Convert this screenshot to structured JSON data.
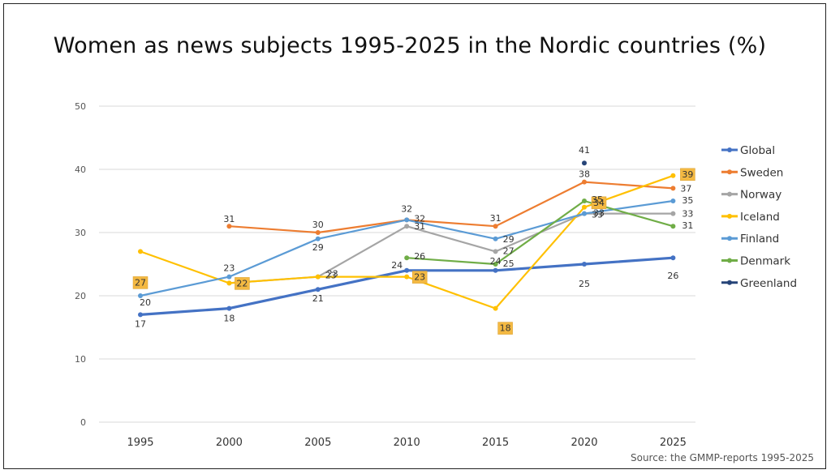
{
  "chart_data": {
    "type": "line",
    "title": "Women as news subjects 1995-2025 in the Nordic countries (%)",
    "source": "Source: the GMMP-reports 1995-2025",
    "x": [
      "1995",
      "2000",
      "2005",
      "2010",
      "2015",
      "2020",
      "2025"
    ],
    "ylim": [
      0,
      50
    ],
    "yticks": [
      0,
      10,
      20,
      30,
      40,
      50
    ],
    "grid": true,
    "legend_position": "right",
    "series": [
      {
        "name": "Global",
        "color": "#4472C4",
        "values": [
          17,
          18,
          21,
          24,
          24,
          25,
          26
        ]
      },
      {
        "name": "Sweden",
        "color": "#ED7D31",
        "values": [
          null,
          31,
          30,
          32,
          31,
          38,
          37
        ]
      },
      {
        "name": "Norway",
        "color": "#A5A5A5",
        "values": [
          null,
          22,
          23,
          31,
          27,
          33,
          33
        ]
      },
      {
        "name": "Iceland",
        "color": "#FFC000",
        "values": [
          27,
          22,
          23,
          23,
          18,
          34,
          39
        ]
      },
      {
        "name": "Finland",
        "color": "#5B9BD5",
        "values": [
          20,
          23,
          29,
          32,
          29,
          33,
          35
        ]
      },
      {
        "name": "Denmark",
        "color": "#70AD47",
        "values": [
          null,
          null,
          null,
          26,
          25,
          35,
          31
        ]
      },
      {
        "name": "Greenland",
        "color": "#264478",
        "values": [
          null,
          null,
          null,
          null,
          null,
          41,
          null
        ]
      }
    ]
  }
}
